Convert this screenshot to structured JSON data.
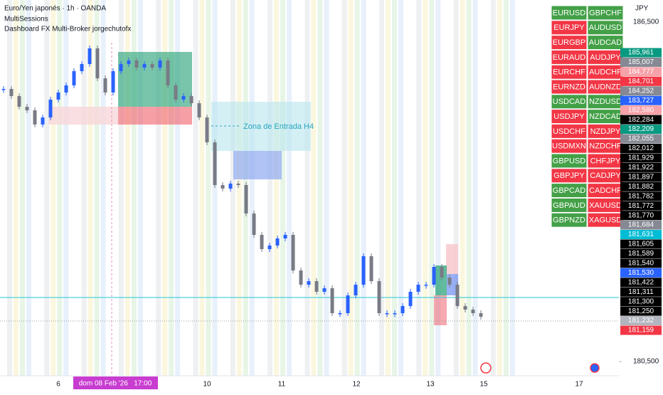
{
  "header": {
    "symbol": "Euro/Yen japonés · 1h · OANDA",
    "indicator_1": "MultiSessions",
    "indicator_2": "Dashboard FX Multi-Broker  jorgechutofx"
  },
  "dashboard": {
    "rows": [
      [
        {
          "label": "EURUSD",
          "color": "#43a047"
        },
        {
          "label": "GBPCHF",
          "color": "#43a047"
        }
      ],
      [
        {
          "label": "EURJPY",
          "color": "#f23645"
        },
        {
          "label": "AUDUSD",
          "color": "#43a047"
        }
      ],
      [
        {
          "label": "EURGBP",
          "color": "#f23645"
        },
        {
          "label": "AUDCAD",
          "color": "#43a047"
        }
      ],
      [
        {
          "label": "EURAUD",
          "color": "#f23645"
        },
        {
          "label": "AUDJPY",
          "color": "#f23645"
        }
      ],
      [
        {
          "label": "EURCHF",
          "color": "#f23645"
        },
        {
          "label": "AUDCHF",
          "color": "#f23645"
        }
      ],
      [
        {
          "label": "EURNZD",
          "color": "#f23645"
        },
        {
          "label": "AUDNZD",
          "color": "#f23645"
        }
      ],
      [
        {
          "label": "USDCAD",
          "color": "#43a047"
        },
        {
          "label": "NZDUSD",
          "color": "#43a047"
        }
      ],
      [
        {
          "label": "USDJPY",
          "color": "#f23645"
        },
        {
          "label": "NZDCAD",
          "color": "#43a047"
        }
      ],
      [
        {
          "label": "USDCHF",
          "color": "#f23645"
        },
        {
          "label": "NZDJPY",
          "color": "#f23645"
        }
      ],
      [
        {
          "label": "USDMXN",
          "color": "#f23645"
        },
        {
          "label": "NZDCHF",
          "color": "#f23645"
        }
      ],
      [
        {
          "label": "GBPUSD",
          "color": "#43a047"
        },
        {
          "label": "CHFJPY",
          "color": "#f23645"
        }
      ],
      [
        {
          "label": "GBPJPY",
          "color": "#f23645"
        },
        {
          "label": "CADJPY",
          "color": "#f23645"
        }
      ],
      [
        {
          "label": "GBPCAD",
          "color": "#43a047"
        },
        {
          "label": "CADCHF",
          "color": "#f23645"
        }
      ],
      [
        {
          "label": "GBPAUD",
          "color": "#43a047"
        },
        {
          "label": "XAUUSD",
          "color": "#f23645"
        }
      ],
      [
        {
          "label": "GBPNZD",
          "color": "#43a047"
        },
        {
          "label": "XAGUSD",
          "color": "#f23645"
        }
      ]
    ]
  },
  "price_axis": {
    "currency": "JPY",
    "ticks": [
      {
        "value": 186.5,
        "label": "186,500"
      },
      {
        "value": 180.5,
        "label": "180,500"
      }
    ],
    "badges": [
      {
        "label": "185,961",
        "color": "#089981"
      },
      {
        "label": "185,007",
        "color": "#868993"
      },
      {
        "label": "184,777",
        "color": "#f7a1a8"
      },
      {
        "label": "184,701",
        "color": "#f23645"
      },
      {
        "label": "184,252",
        "color": "#868993"
      },
      {
        "label": "183,727",
        "color": "#2962ff"
      },
      {
        "label": "182,580",
        "color": "#f7a1a8"
      },
      {
        "label": "182,284",
        "color": "#000000"
      },
      {
        "label": "182,209",
        "color": "#089981"
      },
      {
        "label": "182,055",
        "color": "#868993"
      },
      {
        "label": "182,012",
        "color": "#000000"
      },
      {
        "label": "181,929",
        "color": "#000000"
      },
      {
        "label": "181,922",
        "color": "#000000"
      },
      {
        "label": "181,897",
        "color": "#000000"
      },
      {
        "label": "181,882",
        "color": "#000000"
      },
      {
        "label": "181,782",
        "color": "#000000"
      },
      {
        "label": "181,772",
        "color": "#000000"
      },
      {
        "label": "181,770",
        "color": "#000000"
      },
      {
        "label": "181,684",
        "color": "#868993"
      },
      {
        "label": "181,631",
        "color": "#00bcd4"
      },
      {
        "label": "181,605",
        "color": "#000000"
      },
      {
        "label": "181,589",
        "color": "#000000"
      },
      {
        "label": "181,540",
        "color": "#000000"
      },
      {
        "label": "181,530",
        "color": "#2962ff"
      },
      {
        "label": "181,422",
        "color": "#000000"
      },
      {
        "label": "181,311",
        "color": "#000000"
      },
      {
        "label": "181,300",
        "color": "#000000"
      },
      {
        "label": "181,250",
        "color": "#000000"
      },
      {
        "label": "181,232",
        "color": "#b2b5be"
      },
      {
        "label": "181,159",
        "color": "#f23645"
      }
    ]
  },
  "time_axis": {
    "ticks": [
      6,
      10,
      11,
      12,
      13,
      15,
      17
    ],
    "crosshair_label": "dom 08 Feb '26   17:00"
  },
  "annotation": "Zona de Entrada H4",
  "candles": {
    "up_color": "#2962ff",
    "down_color": "#787b86",
    "closes": [
      185.318,
      185.192,
      185.003,
      184.94,
      184.689,
      184.814,
      185.129,
      185.255,
      185.381,
      185.632,
      185.758,
      186.035,
      185.506,
      185.255,
      185.632,
      185.758,
      185.821,
      185.695,
      185.758,
      185.695,
      185.821,
      185.381,
      185.129,
      185.192,
      185.066,
      184.814,
      184.374,
      183.619,
      183.557,
      183.645,
      183.619,
      183.116,
      182.739,
      182.487,
      182.55,
      182.676,
      182.739,
      182.11,
      181.858,
      181.921,
      181.733,
      181.796,
      181.355,
      181.355,
      181.67,
      181.858,
      182.362,
      181.921,
      181.355,
      181.355,
      181.355,
      181.481,
      181.733,
      181.858,
      181.858,
      182.173,
      181.984,
      181.858,
      181.481,
      181.418,
      181.355,
      181.292
    ]
  }
}
